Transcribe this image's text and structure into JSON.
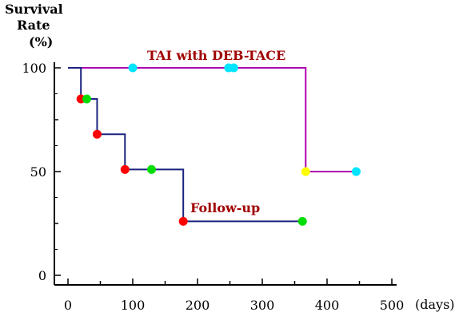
{
  "chart_data": {
    "type": "line",
    "step": true,
    "ylabel": [
      "Survival",
      "Rate",
      "(%)"
    ],
    "xlabel": "(days)",
    "xlim": [
      0,
      500
    ],
    "ylim": [
      0,
      100
    ],
    "x_ticks": [
      0,
      100,
      200,
      300,
      400,
      500
    ],
    "y_ticks": [
      0,
      50,
      100
    ],
    "series": [
      {
        "name": "TAI with DEB-TACE",
        "color": "#b000b0",
        "label_color": "#a00000",
        "steps": [
          {
            "x": 0,
            "y": 100
          },
          {
            "x": 367,
            "y": 100
          },
          {
            "x": 367,
            "y": 50
          },
          {
            "x": 445,
            "y": 50
          }
        ],
        "points": [
          {
            "x": 100,
            "y": 100,
            "color": "#00e5ff"
          },
          {
            "x": 248,
            "y": 100,
            "color": "#00e5ff"
          },
          {
            "x": 256,
            "y": 100,
            "color": "#00e5ff"
          },
          {
            "x": 367,
            "y": 50,
            "color": "#ffff00"
          },
          {
            "x": 445,
            "y": 50,
            "color": "#00e5ff"
          }
        ]
      },
      {
        "name": "Follow-up",
        "color": "#1a237e",
        "label_color": "#a00000",
        "steps": [
          {
            "x": 0,
            "y": 100
          },
          {
            "x": 20,
            "y": 100
          },
          {
            "x": 20,
            "y": 85
          },
          {
            "x": 45,
            "y": 85
          },
          {
            "x": 45,
            "y": 68
          },
          {
            "x": 88,
            "y": 68
          },
          {
            "x": 88,
            "y": 51
          },
          {
            "x": 178,
            "y": 51
          },
          {
            "x": 178,
            "y": 26
          },
          {
            "x": 362,
            "y": 26
          }
        ],
        "points": [
          {
            "x": 20,
            "y": 85,
            "color": "#ff0000"
          },
          {
            "x": 29,
            "y": 85,
            "color": "#00dd00"
          },
          {
            "x": 45,
            "y": 68,
            "color": "#ff0000"
          },
          {
            "x": 88,
            "y": 51,
            "color": "#ff0000"
          },
          {
            "x": 129,
            "y": 51,
            "color": "#00dd00"
          },
          {
            "x": 178,
            "y": 26,
            "color": "#ff0000"
          },
          {
            "x": 362,
            "y": 26,
            "color": "#00dd00"
          }
        ]
      }
    ]
  }
}
